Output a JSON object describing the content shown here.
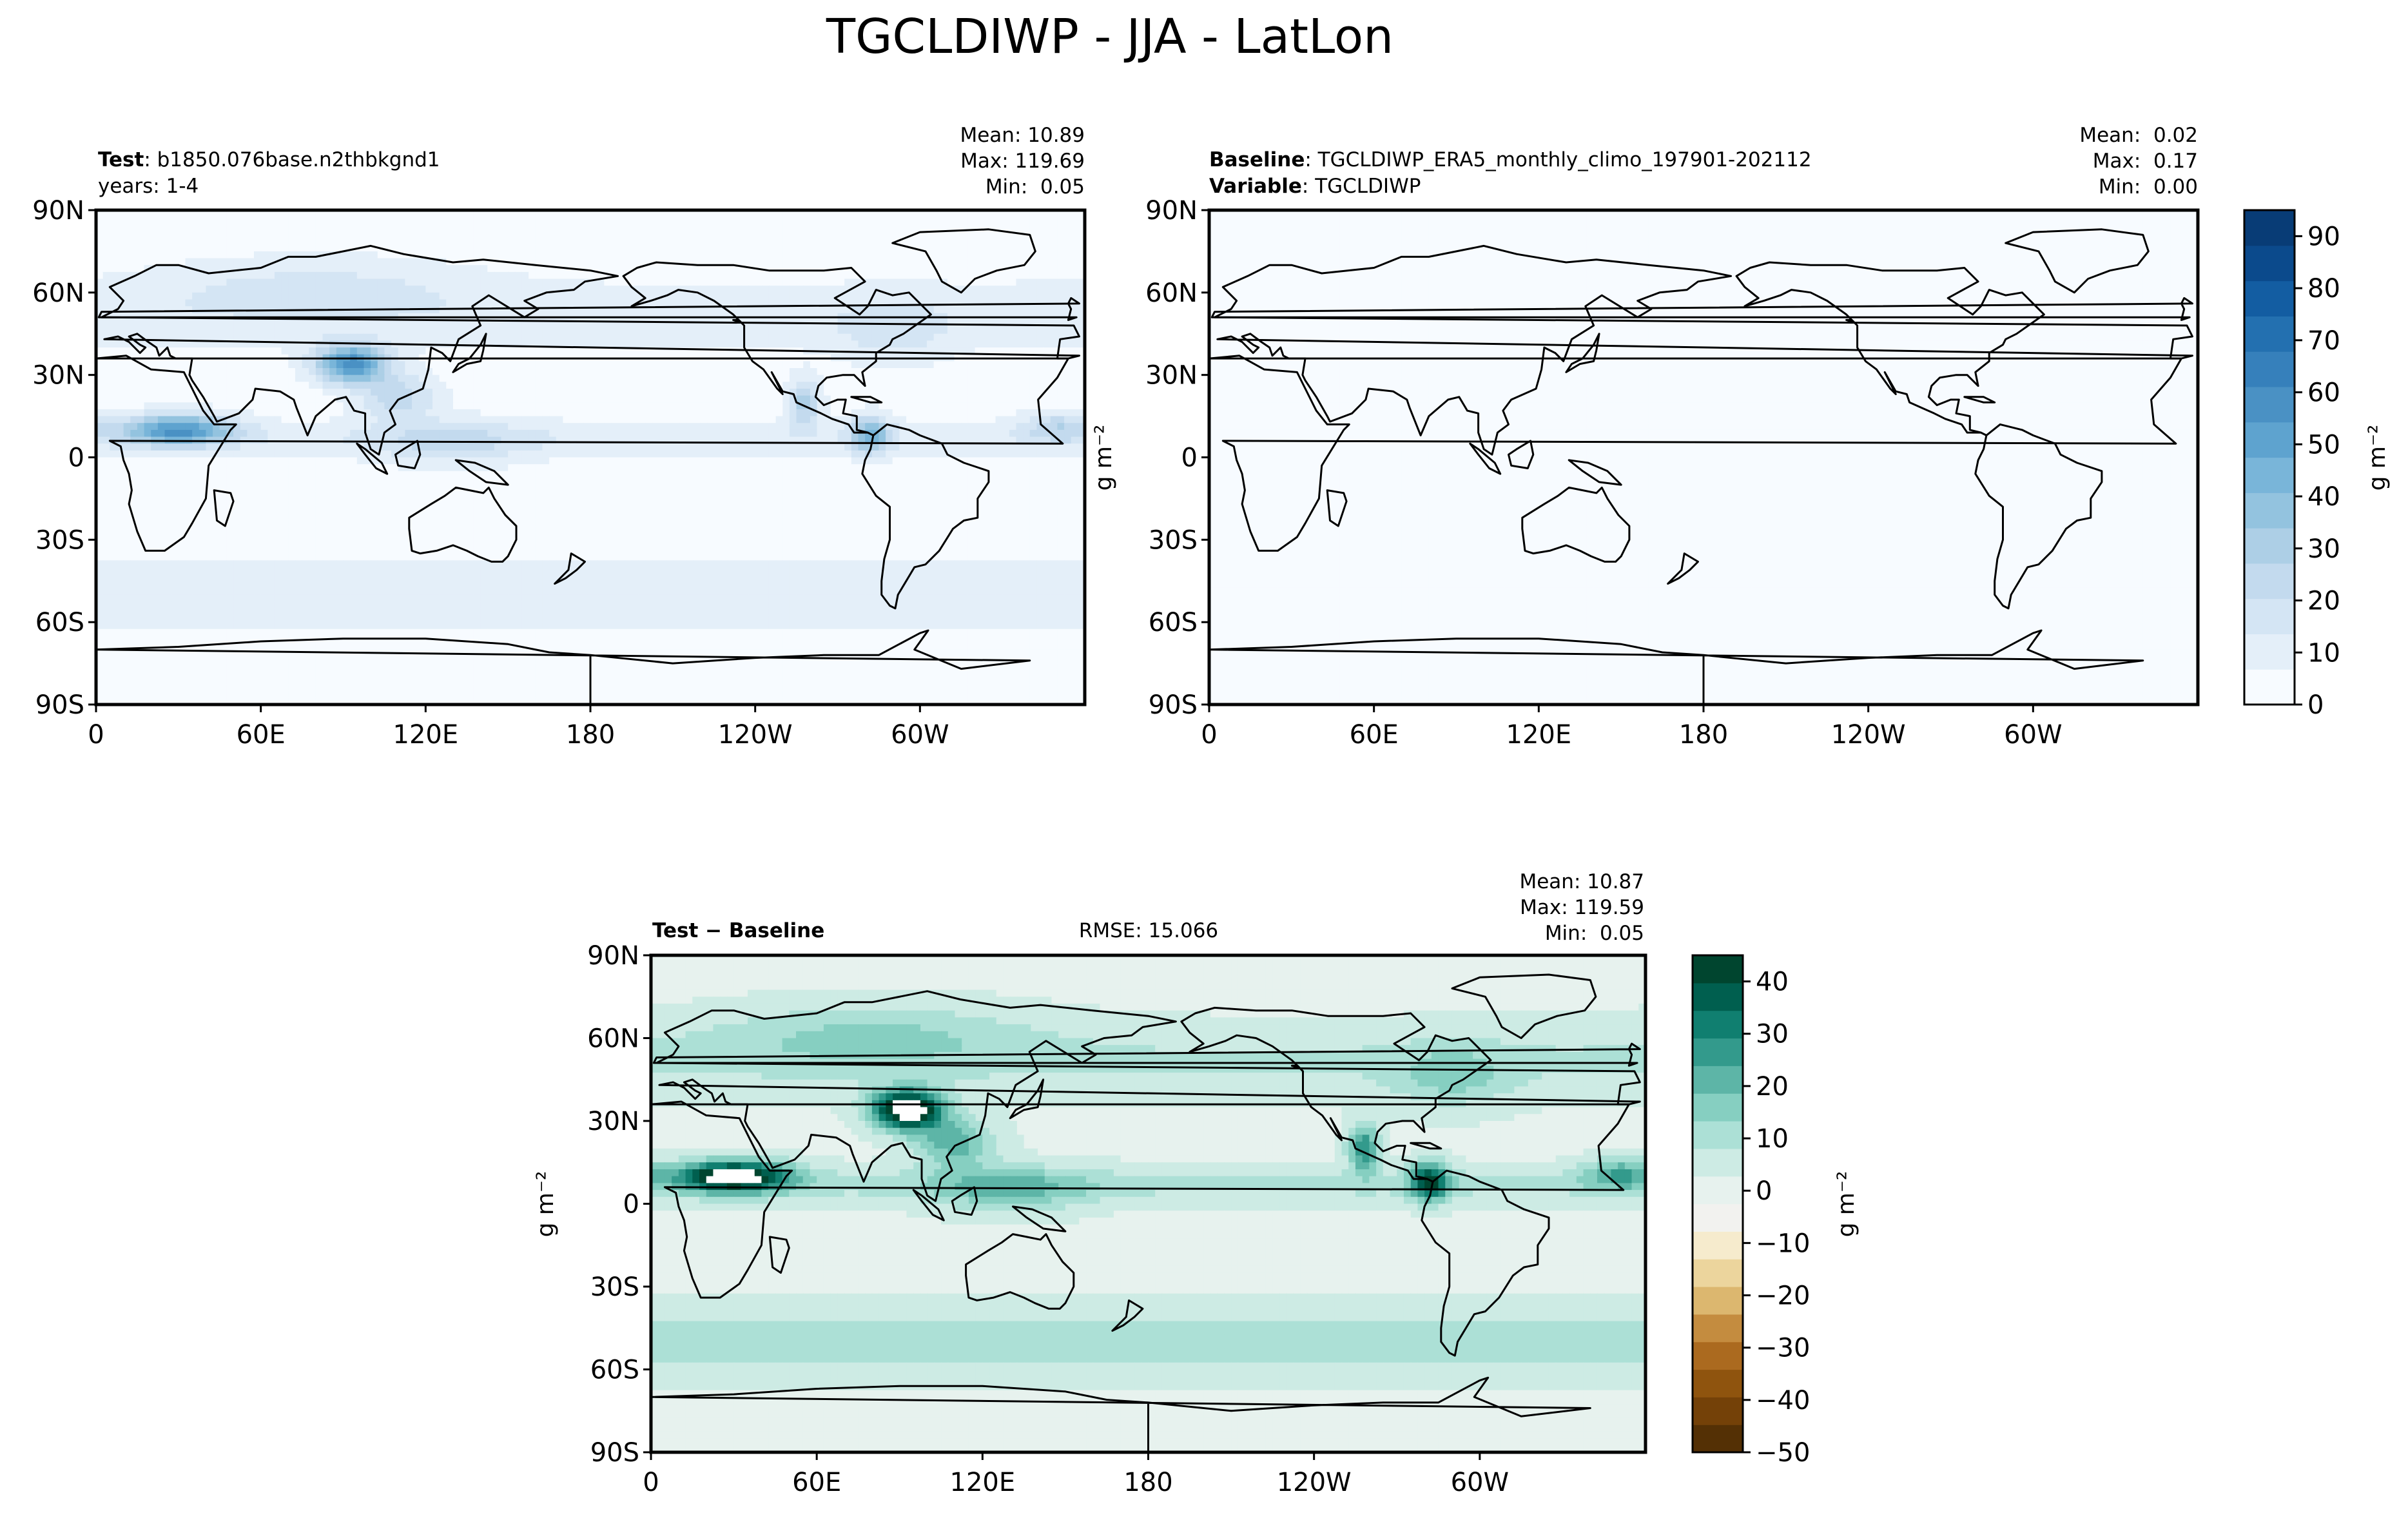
{
  "suptitle": "TGCLDIWP - JJA - LatLon",
  "colors": {
    "blues": [
      "#f7fbff",
      "#e4eff9",
      "#d4e5f4",
      "#c3daee",
      "#adcfe6",
      "#93c3df",
      "#79b5d9",
      "#5ea3cf",
      "#4a91c4",
      "#3680bb",
      "#2370b0",
      "#135da2",
      "#0b4a8c",
      "#083c76"
    ],
    "brbg": [
      "#543005",
      "#744108",
      "#8f540e",
      "#ab6a1f",
      "#c48c3f",
      "#dcb76f",
      "#ecd59d",
      "#f6ebcd",
      "#f2f2ef",
      "#e7f2ee",
      "#cdebe4",
      "#ace0d6",
      "#86cfc1",
      "#5db5a7",
      "#339a8c",
      "#107f70",
      "#005f4f",
      "#00452f"
    ],
    "land_outline": "#000000"
  },
  "chart_data": [
    {
      "type": "heatmap",
      "panel": "test",
      "title_left": [
        {
          "bold": "Test",
          "text": ": b1850.076base.n2thbkgnd1"
        },
        {
          "bold": "",
          "text": "years: 1-4"
        }
      ],
      "stats": [
        "Mean: 10.89",
        "Max: 119.69",
        "Min:  0.05"
      ],
      "xticks": [
        "0",
        "60E",
        "120E",
        "180",
        "120W",
        "60W"
      ],
      "yticks": [
        "90N",
        "60N",
        "30N",
        "0",
        "30S",
        "60S",
        "90S"
      ],
      "xlim": [
        0,
        360
      ],
      "ylim": [
        -90,
        90
      ],
      "field": "test",
      "value_mean": 10.89,
      "value_max": 119.69,
      "value_min": 0.05
    },
    {
      "type": "heatmap",
      "panel": "baseline",
      "title_left": [
        {
          "bold": "Baseline",
          "text": ": TGCLDIWP_ERA5_monthly_climo_197901-202112"
        },
        {
          "bold": "Variable",
          "text": ": TGCLDIWP"
        }
      ],
      "stats": [
        "Mean:  0.02",
        "Max:  0.17",
        "Min:  0.00"
      ],
      "xticks": [
        "0",
        "60E",
        "120E",
        "180",
        "120W",
        "60W"
      ],
      "yticks": [
        "90N",
        "60N",
        "30N",
        "0",
        "30S",
        "60S",
        "90S"
      ],
      "xlim": [
        0,
        360
      ],
      "ylim": [
        -90,
        90
      ],
      "field": "baseline",
      "value_mean": 0.02,
      "value_max": 0.17,
      "value_min": 0.0
    },
    {
      "type": "heatmap",
      "panel": "difference",
      "title_left": [
        {
          "bold": "Test − Baseline",
          "text": ""
        }
      ],
      "title_center": "RMSE: 15.066",
      "stats": [
        "Mean: 10.87",
        "Max: 119.59",
        "Min:  0.05"
      ],
      "xticks": [
        "0",
        "60E",
        "120E",
        "180",
        "120W",
        "60W"
      ],
      "yticks": [
        "90N",
        "60N",
        "30N",
        "0",
        "30S",
        "60S",
        "90S"
      ],
      "xlim": [
        0,
        360
      ],
      "ylim": [
        -90,
        90
      ],
      "field": "diff",
      "value_mean": 10.87,
      "value_max": 119.59,
      "value_min": 0.05
    }
  ],
  "colorbars": {
    "top": {
      "label": "g m⁻²",
      "ticks": [
        "0",
        "10",
        "20",
        "30",
        "40",
        "50",
        "60",
        "70",
        "80",
        "90"
      ],
      "tick_values": [
        0,
        10,
        20,
        30,
        40,
        50,
        60,
        70,
        80,
        90
      ],
      "range": [
        0,
        95
      ],
      "levels": 14
    },
    "bottom": {
      "label": "g m⁻²",
      "ticks": [
        "−50",
        "−40",
        "−30",
        "−20",
        "−10",
        "0",
        "10",
        "20",
        "30",
        "40"
      ],
      "tick_values": [
        -50,
        -40,
        -30,
        -20,
        -10,
        0,
        10,
        20,
        30,
        40
      ],
      "range": [
        -50,
        45
      ],
      "levels": 18
    }
  },
  "panel_ylabel": "g m⁻²"
}
